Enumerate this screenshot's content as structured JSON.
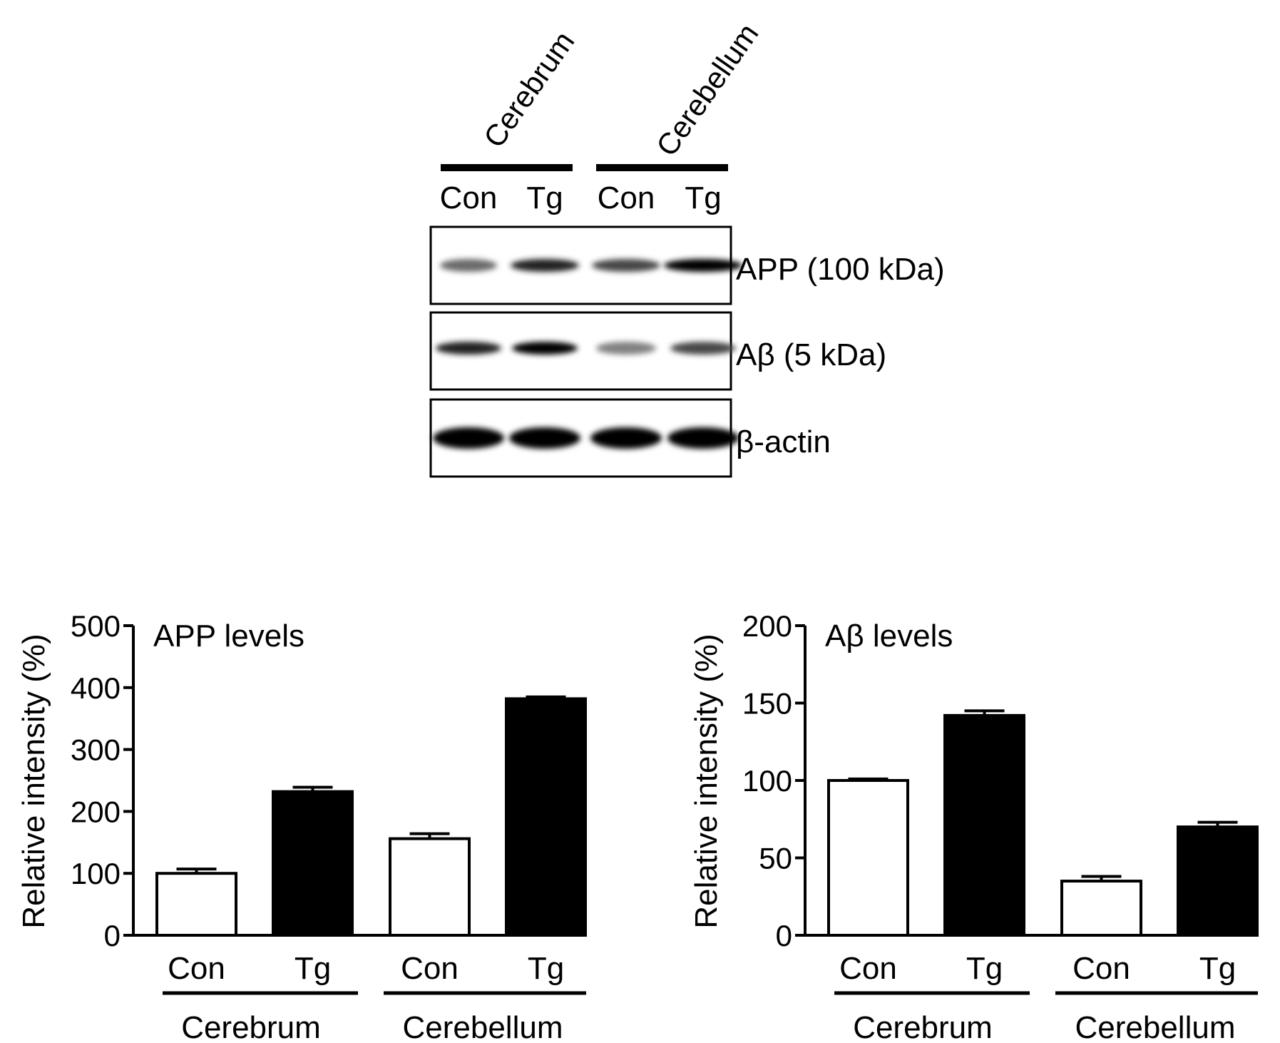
{
  "blot": {
    "tissue_labels": [
      "Cerebrum",
      "Cerebellum"
    ],
    "lane_labels": [
      "Con",
      "Tg",
      "Con",
      "Tg"
    ],
    "panels": [
      {
        "label": "APP (100 kDa)",
        "band_intensity": [
          0.55,
          0.85,
          0.7,
          1.0
        ]
      },
      {
        "label": "Aβ (5 kDa)",
        "band_intensity": [
          0.85,
          1.0,
          0.45,
          0.7
        ]
      },
      {
        "label": "β-actin",
        "band_intensity": [
          1.0,
          1.0,
          1.0,
          1.0
        ]
      }
    ]
  },
  "chart_data": [
    {
      "type": "bar",
      "title": "APP levels",
      "ylabel": "Relative intensity (%)",
      "ylim": [
        0,
        500
      ],
      "yticks": [
        0,
        100,
        200,
        300,
        400,
        500
      ],
      "categories": [
        "Con",
        "Tg",
        "Con",
        "Tg"
      ],
      "groups": [
        "Cerebrum",
        "Cerebellum"
      ],
      "values": [
        100,
        232,
        156,
        382
      ],
      "errors": [
        7,
        7,
        8,
        3
      ],
      "fills": [
        "#ffffff",
        "#000000",
        "#ffffff",
        "#000000"
      ]
    },
    {
      "type": "bar",
      "title": "Aβ levels",
      "ylabel": "Relative intensity (%)",
      "ylim": [
        0,
        200
      ],
      "yticks": [
        0,
        50,
        100,
        150,
        200
      ],
      "categories": [
        "Con",
        "Tg",
        "Con",
        "Tg"
      ],
      "groups": [
        "Cerebrum",
        "Cerebellum"
      ],
      "values": [
        100,
        142,
        35,
        70
      ],
      "errors": [
        1,
        3,
        3,
        3
      ],
      "fills": [
        "#ffffff",
        "#000000",
        "#ffffff",
        "#000000"
      ]
    }
  ]
}
